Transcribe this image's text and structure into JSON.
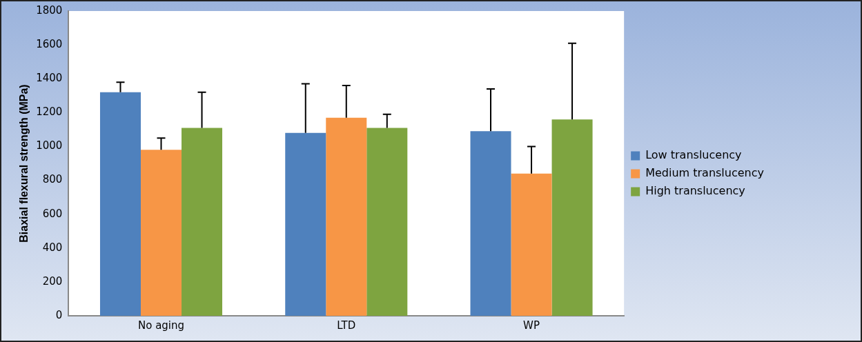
{
  "chart_data": {
    "type": "bar",
    "ylabel": "Biaxial flexural strength (MPa)",
    "categories": [
      "No aging",
      "LTD",
      "WP"
    ],
    "series": [
      {
        "name": "Low translucency",
        "color": "#4f81bd",
        "values": [
          1320,
          1080,
          1090
        ],
        "errors": [
          [
            1320,
            1380
          ],
          [
            1080,
            1370
          ],
          [
            1090,
            1340
          ]
        ]
      },
      {
        "name": "Medium translucency",
        "color": "#f79646",
        "values": [
          980,
          1170,
          840
        ],
        "errors": [
          [
            980,
            1050
          ],
          [
            1170,
            1360
          ],
          [
            840,
            1000
          ]
        ]
      },
      {
        "name": "High translucency",
        "color": "#7ea440",
        "values": [
          1110,
          1110,
          1160
        ],
        "errors": [
          [
            1110,
            1320
          ],
          [
            1110,
            1190
          ],
          [
            1160,
            1610
          ]
        ]
      }
    ],
    "ylim": [
      0,
      1800
    ],
    "yticks": [
      0,
      200,
      400,
      600,
      800,
      1000,
      1200,
      1400,
      1600,
      1800
    ],
    "grid": false,
    "legend": "right"
  }
}
